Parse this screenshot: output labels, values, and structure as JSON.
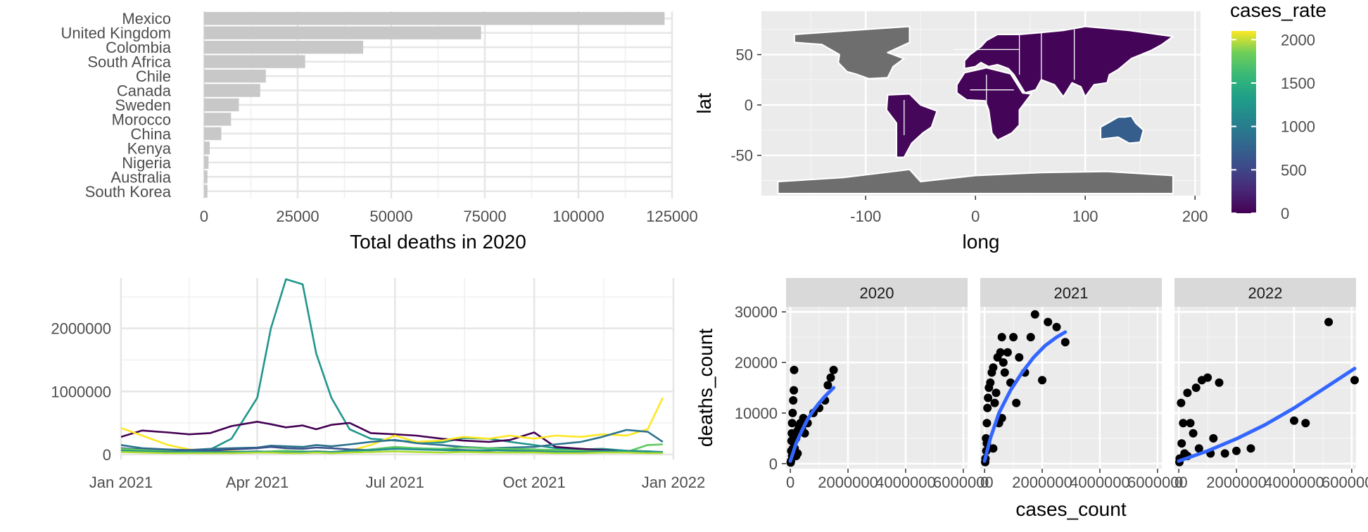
{
  "chart_data": [
    {
      "type": "bar",
      "orientation": "horizontal",
      "title": "",
      "xlabel": "Total deaths in 2020",
      "ylabel": "",
      "categories": [
        "Mexico",
        "United Kingdom",
        "Colombia",
        "South Africa",
        "Chile",
        "Canada",
        "Sweden",
        "Morocco",
        "China",
        "Kenya",
        "Nigeria",
        "Australia",
        "South Korea"
      ],
      "values": [
        123000,
        74000,
        42500,
        27000,
        16500,
        15000,
        9300,
        7200,
        4600,
        1500,
        1200,
        900,
        900
      ],
      "xlim": [
        0,
        125000
      ],
      "xticks": [
        "0",
        "25000",
        "50000",
        "75000",
        "100000",
        "125000"
      ],
      "bar_color": "#c8c8c8",
      "grid": true,
      "theme": "minimal"
    },
    {
      "type": "heatmap",
      "subtype": "choropleth-map",
      "xlabel": "long",
      "ylabel": "lat",
      "xticks": [
        "-100",
        "0",
        "100",
        "200"
      ],
      "yticks": [
        "-50",
        "0",
        "50"
      ],
      "xlim": [
        -195,
        205
      ],
      "ylim": [
        -90,
        93
      ],
      "legend": {
        "title": "cases_rate",
        "placement": "right",
        "scale": "viridis",
        "range": [
          0,
          2100
        ],
        "ticks": [
          "0",
          "500",
          "1000",
          "1500",
          "2000"
        ]
      },
      "na_color": "#6e6e6e",
      "regions": [
        {
          "shape": "usa-canada",
          "status": "NA",
          "value": null
        },
        {
          "shape": "africa-central",
          "status": "NA",
          "value": null
        },
        {
          "shape": "antarctica",
          "status": "NA",
          "value": null
        },
        {
          "shape": "australia",
          "status": "value",
          "value": 700
        },
        {
          "shape": "south-america",
          "status": "value",
          "value": 40
        },
        {
          "shape": "eurasia",
          "status": "value",
          "value": 30
        },
        {
          "shape": "africa",
          "status": "value",
          "value": 30
        }
      ],
      "grid": true,
      "theme": "gray"
    },
    {
      "type": "line",
      "title": "",
      "xlabel": "",
      "ylabel": "",
      "x_type": "date",
      "x": [
        "2021-01-01",
        "2021-01-15",
        "2021-02-01",
        "2021-02-15",
        "2021-03-01",
        "2021-03-15",
        "2021-04-01",
        "2021-04-10",
        "2021-04-20",
        "2021-05-01",
        "2021-05-10",
        "2021-05-20",
        "2021-06-01",
        "2021-06-15",
        "2021-07-01",
        "2021-07-15",
        "2021-08-01",
        "2021-08-15",
        "2021-09-01",
        "2021-09-15",
        "2021-10-01",
        "2021-10-15",
        "2021-11-01",
        "2021-11-15",
        "2021-12-01",
        "2021-12-15",
        "2021-12-25"
      ],
      "xlim": [
        "2021-01-01",
        "2022-01-01"
      ],
      "xticks": [
        "Jan 2021",
        "Apr 2021",
        "Jul 2021",
        "Oct 2021",
        "Jan 2022"
      ],
      "ylim": [
        -80000,
        2800000
      ],
      "yticks": [
        "0",
        "1000000",
        "2000000"
      ],
      "series": [
        {
          "color": "#1f968b",
          "values": [
            70000,
            60000,
            50000,
            55000,
            80000,
            250000,
            900000,
            2000000,
            2780000,
            2700000,
            1600000,
            900000,
            400000,
            250000,
            220000,
            200000,
            190000,
            260000,
            250000,
            200000,
            150000,
            100000,
            80000,
            90000,
            60000,
            50000,
            30000
          ]
        },
        {
          "color": "#440154",
          "values": [
            280000,
            380000,
            350000,
            320000,
            340000,
            450000,
            520000,
            480000,
            430000,
            460000,
            400000,
            470000,
            500000,
            340000,
            320000,
            300000,
            250000,
            220000,
            200000,
            230000,
            350000,
            120000,
            90000,
            70000,
            50000,
            40000,
            30000
          ]
        },
        {
          "color": "#fde725",
          "values": [
            420000,
            300000,
            150000,
            80000,
            60000,
            50000,
            40000,
            30000,
            30000,
            40000,
            50000,
            40000,
            60000,
            150000,
            300000,
            200000,
            220000,
            280000,
            250000,
            300000,
            250000,
            300000,
            280000,
            320000,
            300000,
            400000,
            900000
          ]
        },
        {
          "color": "#2c728e",
          "values": [
            150000,
            100000,
            80000,
            70000,
            90000,
            100000,
            110000,
            140000,
            130000,
            120000,
            150000,
            130000,
            160000,
            200000,
            230000,
            180000,
            150000,
            120000,
            100000,
            110000,
            120000,
            160000,
            200000,
            280000,
            390000,
            360000,
            200000
          ]
        },
        {
          "color": "#3b528b",
          "values": [
            100000,
            80000,
            60000,
            70000,
            60000,
            80000,
            100000,
            120000,
            100000,
            90000,
            110000,
            100000,
            80000,
            70000,
            90000,
            100000,
            80000,
            70000,
            60000,
            80000,
            70000,
            60000,
            50000,
            60000,
            50000,
            40000,
            40000
          ]
        },
        {
          "color": "#5ec962",
          "values": [
            90000,
            70000,
            50000,
            40000,
            30000,
            30000,
            40000,
            50000,
            60000,
            50000,
            40000,
            30000,
            50000,
            80000,
            120000,
            100000,
            90000,
            110000,
            100000,
            90000,
            80000,
            70000,
            60000,
            50000,
            40000,
            150000,
            160000
          ]
        },
        {
          "color": "#21918c",
          "values": [
            60000,
            50000,
            40000,
            50000,
            40000,
            40000,
            50000,
            40000,
            30000,
            40000,
            50000,
            40000,
            60000,
            70000,
            90000,
            80000,
            70000,
            60000,
            70000,
            60000,
            50000,
            40000,
            40000,
            50000,
            60000,
            50000,
            40000
          ]
        },
        {
          "color": "#addc30",
          "values": [
            40000,
            30000,
            20000,
            20000,
            20000,
            20000,
            30000,
            30000,
            20000,
            20000,
            30000,
            20000,
            30000,
            40000,
            50000,
            40000,
            30000,
            40000,
            30000,
            30000,
            30000,
            20000,
            20000,
            30000,
            30000,
            20000,
            20000
          ]
        }
      ],
      "grid": true,
      "theme": "minimal"
    },
    {
      "type": "scatter",
      "faceted": true,
      "xlabel": "cases_count",
      "ylabel": "deaths_count",
      "xlim": [
        -150000,
        6150000
      ],
      "ylim": [
        -1000,
        31000
      ],
      "xticks": [
        "0",
        "2000000",
        "4000000",
        "6000000"
      ],
      "yticks": [
        "0",
        "10000",
        "20000",
        "30000"
      ],
      "smooth_color": "#3366ff",
      "point_color": "#000000",
      "panels": [
        {
          "label": "2020",
          "points": [
            [
              20000,
              500
            ],
            [
              30000,
              2500
            ],
            [
              40000,
              4500
            ],
            [
              50000,
              6000
            ],
            [
              60000,
              8000
            ],
            [
              80000,
              10000
            ],
            [
              100000,
              12500
            ],
            [
              120000,
              14500
            ],
            [
              130000,
              18500
            ],
            [
              150000,
              3000
            ],
            [
              200000,
              5000
            ],
            [
              250000,
              6500
            ],
            [
              300000,
              7500
            ],
            [
              350000,
              8000
            ],
            [
              400000,
              7000
            ],
            [
              450000,
              9000
            ],
            [
              500000,
              6000
            ],
            [
              600000,
              8000
            ],
            [
              800000,
              10000
            ],
            [
              1000000,
              11000
            ],
            [
              1200000,
              12500
            ],
            [
              1300000,
              15500
            ],
            [
              1400000,
              17000
            ],
            [
              1500000,
              18500
            ],
            [
              10000,
              200
            ],
            [
              60000,
              1500
            ],
            [
              90000,
              3000
            ],
            [
              150000,
              5500
            ],
            [
              200000,
              1500
            ],
            [
              250000,
              2000
            ]
          ],
          "smooth": [
            [
              0,
              500
            ],
            [
              200000,
              4000
            ],
            [
              400000,
              6500
            ],
            [
              600000,
              8800
            ],
            [
              800000,
              10500
            ],
            [
              1000000,
              12000
            ],
            [
              1200000,
              13300
            ],
            [
              1500000,
              15000
            ]
          ]
        },
        {
          "label": "2021",
          "points": [
            [
              30000,
              1000
            ],
            [
              50000,
              5000
            ],
            [
              80000,
              8000
            ],
            [
              100000,
              11000
            ],
            [
              120000,
              13000
            ],
            [
              150000,
              15000
            ],
            [
              200000,
              16000
            ],
            [
              250000,
              18000
            ],
            [
              300000,
              19000
            ],
            [
              350000,
              12000
            ],
            [
              400000,
              14000
            ],
            [
              450000,
              21000
            ],
            [
              500000,
              8000
            ],
            [
              550000,
              22000
            ],
            [
              600000,
              25000
            ],
            [
              650000,
              20000
            ],
            [
              700000,
              18000
            ],
            [
              800000,
              22000
            ],
            [
              900000,
              16000
            ],
            [
              1000000,
              25000
            ],
            [
              1100000,
              12000
            ],
            [
              1200000,
              21000
            ],
            [
              1400000,
              18000
            ],
            [
              1600000,
              25000
            ],
            [
              1750000,
              29500
            ],
            [
              2000000,
              16500
            ],
            [
              2200000,
              28000
            ],
            [
              2500000,
              27000
            ],
            [
              2800000,
              24000
            ],
            [
              20000,
              300
            ],
            [
              60000,
              2500
            ],
            [
              80000,
              4000
            ],
            [
              300000,
              3000
            ],
            [
              600000,
              9000
            ]
          ],
          "smooth": [
            [
              0,
              500
            ],
            [
              200000,
              5000
            ],
            [
              500000,
              10000
            ],
            [
              900000,
              14500
            ],
            [
              1300000,
              18000
            ],
            [
              1700000,
              21000
            ],
            [
              2100000,
              23300
            ],
            [
              2500000,
              25000
            ],
            [
              2800000,
              26000
            ]
          ]
        },
        {
          "label": "2022",
          "points": [
            [
              30000,
              1000
            ],
            [
              80000,
              12000
            ],
            [
              100000,
              4000
            ],
            [
              150000,
              8000
            ],
            [
              200000,
              2000
            ],
            [
              300000,
              14000
            ],
            [
              400000,
              8000
            ],
            [
              500000,
              6000
            ],
            [
              600000,
              15000
            ],
            [
              800000,
              16500
            ],
            [
              1000000,
              17000
            ],
            [
              1200000,
              5000
            ],
            [
              1400000,
              16000
            ],
            [
              1600000,
              2000
            ],
            [
              2000000,
              2500
            ],
            [
              2500000,
              3000
            ],
            [
              4000000,
              8500
            ],
            [
              4400000,
              8000
            ],
            [
              5200000,
              28000
            ],
            [
              6100000,
              16500
            ],
            [
              20000,
              300
            ],
            [
              300000,
              1500
            ],
            [
              700000,
              3000
            ],
            [
              1100000,
              2000
            ]
          ],
          "smooth": [
            [
              0,
              500
            ],
            [
              1000000,
              2500
            ],
            [
              2000000,
              4900
            ],
            [
              3000000,
              7700
            ],
            [
              4000000,
              11000
            ],
            [
              5000000,
              14700
            ],
            [
              6100000,
              18800
            ]
          ]
        }
      ],
      "grid": true,
      "theme": "gray"
    }
  ]
}
